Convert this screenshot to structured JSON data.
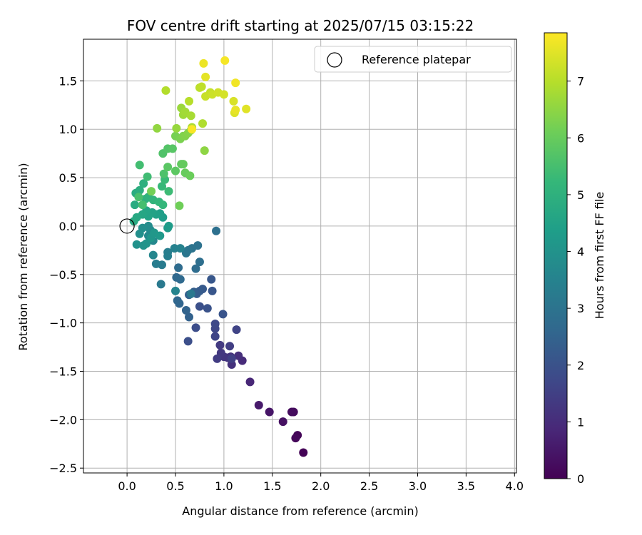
{
  "chart_data": {
    "type": "scatter",
    "title": "FOV centre drift starting at 2025/07/15 03:15:22",
    "xlabel": "Angular distance from reference (arcmin)",
    "ylabel": "Rotation from reference (arcmin)",
    "xlim": [
      -0.45,
      4.02
    ],
    "ylim": [
      -2.55,
      1.93
    ],
    "xticks": [
      0.0,
      0.5,
      1.0,
      1.5,
      2.0,
      2.5,
      3.0,
      3.5,
      4.0
    ],
    "xtick_labels": [
      "0.0",
      "0.5",
      "1.0",
      "1.5",
      "2.0",
      "2.5",
      "3.0",
      "3.5",
      "4.0"
    ],
    "yticks": [
      1.5,
      1.0,
      0.5,
      0.0,
      -0.5,
      -1.0,
      -1.5,
      -2.0,
      -2.5
    ],
    "ytick_labels": [
      "1.5",
      "1.0",
      "0.5",
      "0.0",
      "−0.5",
      "−1.0",
      "−1.5",
      "−2.0",
      "−2.5"
    ],
    "grid": true,
    "legend": {
      "position": "top-right",
      "entries": [
        "Reference platepar"
      ]
    },
    "reference_point": {
      "x": 0.0,
      "y": 0.0,
      "label": "Reference platepar"
    },
    "colorbar": {
      "label": "Hours from first FF file",
      "min": 0,
      "max": 7.85,
      "ticks": [
        0,
        1,
        2,
        3,
        4,
        5,
        6,
        7
      ],
      "tick_labels": [
        "0",
        "1",
        "2",
        "3",
        "4",
        "5",
        "6",
        "7"
      ],
      "colormap": "viridis",
      "stops": [
        "#440154",
        "#482878",
        "#3e4989",
        "#31688e",
        "#26828e",
        "#1f9e89",
        "#35b779",
        "#6ece58",
        "#b5de2b",
        "#fde725"
      ]
    },
    "points": [
      {
        "x": 1.82,
        "y": -2.34,
        "h": 0.05
      },
      {
        "x": 1.76,
        "y": -2.16,
        "h": 0.1
      },
      {
        "x": 1.74,
        "y": -2.19,
        "h": 0.15
      },
      {
        "x": 1.72,
        "y": -1.92,
        "h": 0.2
      },
      {
        "x": 1.7,
        "y": -1.92,
        "h": 0.25
      },
      {
        "x": 1.61,
        "y": -2.02,
        "h": 0.35
      },
      {
        "x": 1.47,
        "y": -1.92,
        "h": 0.45
      },
      {
        "x": 1.36,
        "y": -1.85,
        "h": 0.55
      },
      {
        "x": 1.27,
        "y": -1.61,
        "h": 0.85
      },
      {
        "x": 1.19,
        "y": -1.39,
        "h": 0.95
      },
      {
        "x": 1.15,
        "y": -1.34,
        "h": 1.05
      },
      {
        "x": 1.08,
        "y": -1.43,
        "h": 1.1
      },
      {
        "x": 1.07,
        "y": -1.35,
        "h": 1.15
      },
      {
        "x": 1.04,
        "y": -1.36,
        "h": 1.2
      },
      {
        "x": 1.0,
        "y": -1.35,
        "h": 1.25
      },
      {
        "x": 0.97,
        "y": -1.31,
        "h": 1.3
      },
      {
        "x": 0.96,
        "y": -1.23,
        "h": 1.35
      },
      {
        "x": 0.93,
        "y": -1.37,
        "h": 1.4
      },
      {
        "x": 1.06,
        "y": -1.24,
        "h": 1.45
      },
      {
        "x": 1.08,
        "y": -1.37,
        "h": 1.5
      },
      {
        "x": 1.13,
        "y": -1.07,
        "h": 1.6
      },
      {
        "x": 0.91,
        "y": -1.14,
        "h": 1.65
      },
      {
        "x": 0.91,
        "y": -1.06,
        "h": 1.7
      },
      {
        "x": 0.91,
        "y": -1.01,
        "h": 1.75
      },
      {
        "x": 0.71,
        "y": -1.05,
        "h": 1.85
      },
      {
        "x": 0.63,
        "y": -1.19,
        "h": 1.9
      },
      {
        "x": 0.75,
        "y": -0.83,
        "h": 1.95
      },
      {
        "x": 0.83,
        "y": -0.85,
        "h": 2.0
      },
      {
        "x": 0.99,
        "y": -0.91,
        "h": 2.05
      },
      {
        "x": 0.88,
        "y": -0.67,
        "h": 2.1
      },
      {
        "x": 0.87,
        "y": -0.55,
        "h": 2.15
      },
      {
        "x": 0.78,
        "y": -0.65,
        "h": 2.2
      },
      {
        "x": 0.75,
        "y": -0.67,
        "h": 2.25
      },
      {
        "x": 0.72,
        "y": -0.7,
        "h": 2.3
      },
      {
        "x": 0.69,
        "y": -0.68,
        "h": 2.35
      },
      {
        "x": 0.64,
        "y": -0.71,
        "h": 2.4
      },
      {
        "x": 0.64,
        "y": -0.94,
        "h": 2.45
      },
      {
        "x": 0.61,
        "y": -0.87,
        "h": 2.5
      },
      {
        "x": 0.54,
        "y": -0.8,
        "h": 2.55
      },
      {
        "x": 0.52,
        "y": -0.77,
        "h": 2.6
      },
      {
        "x": 0.51,
        "y": -0.53,
        "h": 2.65
      },
      {
        "x": 0.55,
        "y": -0.55,
        "h": 2.7
      },
      {
        "x": 0.53,
        "y": -0.43,
        "h": 2.75
      },
      {
        "x": 0.71,
        "y": -0.44,
        "h": 2.8
      },
      {
        "x": 0.75,
        "y": -0.37,
        "h": 2.85
      },
      {
        "x": 0.92,
        "y": -0.05,
        "h": 2.9
      },
      {
        "x": 0.73,
        "y": -0.2,
        "h": 2.95
      },
      {
        "x": 0.67,
        "y": -0.23,
        "h": 3.0
      },
      {
        "x": 0.63,
        "y": -0.25,
        "h": 3.05
      },
      {
        "x": 0.61,
        "y": -0.28,
        "h": 3.1
      },
      {
        "x": 0.66,
        "y": -0.7,
        "h": 3.15
      },
      {
        "x": 0.35,
        "y": -0.6,
        "h": 3.2
      },
      {
        "x": 0.36,
        "y": -0.4,
        "h": 3.25
      },
      {
        "x": 0.3,
        "y": -0.39,
        "h": 3.3
      },
      {
        "x": 0.42,
        "y": -0.27,
        "h": 3.35
      },
      {
        "x": 0.42,
        "y": -0.31,
        "h": 3.4
      },
      {
        "x": 0.49,
        "y": -0.23,
        "h": 3.45
      },
      {
        "x": 0.55,
        "y": -0.23,
        "h": 3.5
      },
      {
        "x": 0.5,
        "y": -0.67,
        "h": 3.55
      },
      {
        "x": 0.27,
        "y": -0.3,
        "h": 3.6
      },
      {
        "x": 0.27,
        "y": -0.15,
        "h": 3.65
      },
      {
        "x": 0.22,
        "y": -0.1,
        "h": 3.7
      },
      {
        "x": 0.24,
        "y": -0.04,
        "h": 3.75
      },
      {
        "x": 0.22,
        "y": 0.0,
        "h": 3.8
      },
      {
        "x": 0.16,
        "y": -0.02,
        "h": 3.85
      },
      {
        "x": 0.13,
        "y": -0.08,
        "h": 3.9
      },
      {
        "x": 0.1,
        "y": -0.19,
        "h": 3.95
      },
      {
        "x": 0.17,
        "y": -0.2,
        "h": 4.0
      },
      {
        "x": 0.2,
        "y": -0.18,
        "h": 4.05
      },
      {
        "x": 0.25,
        "y": -0.12,
        "h": 4.1
      },
      {
        "x": 0.28,
        "y": -0.07,
        "h": 4.15
      },
      {
        "x": 0.34,
        "y": -0.1,
        "h": 4.2
      },
      {
        "x": 0.42,
        "y": -0.02,
        "h": 4.25
      },
      {
        "x": 0.43,
        "y": 0.0,
        "h": 4.3
      },
      {
        "x": 0.37,
        "y": 0.09,
        "h": 4.35
      },
      {
        "x": 0.34,
        "y": 0.13,
        "h": 4.4
      },
      {
        "x": 0.3,
        "y": 0.12,
        "h": 4.45
      },
      {
        "x": 0.26,
        "y": 0.14,
        "h": 4.5
      },
      {
        "x": 0.22,
        "y": 0.1,
        "h": 4.55
      },
      {
        "x": 0.2,
        "y": 0.16,
        "h": 4.6
      },
      {
        "x": 0.16,
        "y": 0.12,
        "h": 4.65
      },
      {
        "x": 0.1,
        "y": 0.09,
        "h": 4.7
      },
      {
        "x": 0.07,
        "y": 0.05,
        "h": 4.75
      },
      {
        "x": 0.08,
        "y": 0.22,
        "h": 4.8
      },
      {
        "x": 0.09,
        "y": 0.34,
        "h": 4.85
      },
      {
        "x": 0.13,
        "y": 0.37,
        "h": 4.9
      },
      {
        "x": 0.17,
        "y": 0.44,
        "h": 4.95
      },
      {
        "x": 0.19,
        "y": 0.28,
        "h": 5.0
      },
      {
        "x": 0.22,
        "y": 0.3,
        "h": 5.05
      },
      {
        "x": 0.27,
        "y": 0.27,
        "h": 5.1
      },
      {
        "x": 0.33,
        "y": 0.25,
        "h": 5.15
      },
      {
        "x": 0.37,
        "y": 0.22,
        "h": 5.2
      },
      {
        "x": 0.36,
        "y": 0.41,
        "h": 5.25
      },
      {
        "x": 0.39,
        "y": 0.48,
        "h": 5.3
      },
      {
        "x": 0.43,
        "y": 0.36,
        "h": 5.35
      },
      {
        "x": 0.21,
        "y": 0.51,
        "h": 5.4
      },
      {
        "x": 0.13,
        "y": 0.63,
        "h": 5.45
      },
      {
        "x": 0.16,
        "y": 0.22,
        "h": 5.5
      },
      {
        "x": 0.12,
        "y": 0.3,
        "h": 5.55
      },
      {
        "x": 0.38,
        "y": 0.54,
        "h": 5.6
      },
      {
        "x": 0.37,
        "y": 0.75,
        "h": 5.65
      },
      {
        "x": 0.42,
        "y": 0.8,
        "h": 5.7
      },
      {
        "x": 0.47,
        "y": 0.8,
        "h": 5.75
      },
      {
        "x": 0.42,
        "y": 0.61,
        "h": 5.8
      },
      {
        "x": 0.5,
        "y": 0.57,
        "h": 5.85
      },
      {
        "x": 0.56,
        "y": 0.64,
        "h": 5.9
      },
      {
        "x": 0.58,
        "y": 0.64,
        "h": 5.95
      },
      {
        "x": 0.6,
        "y": 0.55,
        "h": 6.0
      },
      {
        "x": 0.65,
        "y": 0.52,
        "h": 6.05
      },
      {
        "x": 0.54,
        "y": 0.21,
        "h": 6.1
      },
      {
        "x": 0.25,
        "y": 0.36,
        "h": 6.15
      },
      {
        "x": 0.5,
        "y": 0.93,
        "h": 6.2
      },
      {
        "x": 0.55,
        "y": 0.9,
        "h": 6.25
      },
      {
        "x": 0.58,
        "y": 0.93,
        "h": 6.3
      },
      {
        "x": 0.6,
        "y": 0.93,
        "h": 6.35
      },
      {
        "x": 0.63,
        "y": 0.96,
        "h": 6.4
      },
      {
        "x": 0.66,
        "y": 0.99,
        "h": 6.45
      },
      {
        "x": 0.8,
        "y": 0.78,
        "h": 6.5
      },
      {
        "x": 0.31,
        "y": 1.01,
        "h": 6.55
      },
      {
        "x": 0.51,
        "y": 1.01,
        "h": 6.6
      },
      {
        "x": 0.56,
        "y": 1.22,
        "h": 6.65
      },
      {
        "x": 0.58,
        "y": 1.15,
        "h": 6.7
      },
      {
        "x": 0.6,
        "y": 1.18,
        "h": 6.75
      },
      {
        "x": 0.66,
        "y": 1.14,
        "h": 6.8
      },
      {
        "x": 0.67,
        "y": 1.02,
        "h": 6.85
      },
      {
        "x": 0.78,
        "y": 1.06,
        "h": 6.9
      },
      {
        "x": 0.4,
        "y": 1.4,
        "h": 6.95
      },
      {
        "x": 0.64,
        "y": 1.29,
        "h": 7.0
      },
      {
        "x": 0.75,
        "y": 1.43,
        "h": 7.05
      },
      {
        "x": 0.77,
        "y": 1.44,
        "h": 7.1
      },
      {
        "x": 0.86,
        "y": 1.38,
        "h": 7.15
      },
      {
        "x": 0.81,
        "y": 1.34,
        "h": 7.2
      },
      {
        "x": 0.88,
        "y": 1.36,
        "h": 7.25
      },
      {
        "x": 0.94,
        "y": 1.38,
        "h": 7.3
      },
      {
        "x": 1.0,
        "y": 1.36,
        "h": 7.35
      },
      {
        "x": 1.1,
        "y": 1.29,
        "h": 7.4
      },
      {
        "x": 1.11,
        "y": 1.17,
        "h": 7.45
      },
      {
        "x": 1.23,
        "y": 1.21,
        "h": 7.5
      },
      {
        "x": 0.81,
        "y": 1.54,
        "h": 7.55
      },
      {
        "x": 1.12,
        "y": 1.2,
        "h": 7.6
      },
      {
        "x": 0.79,
        "y": 1.68,
        "h": 7.65
      },
      {
        "x": 1.12,
        "y": 1.48,
        "h": 7.7
      },
      {
        "x": 1.01,
        "y": 1.71,
        "h": 7.75
      },
      {
        "x": 0.67,
        "y": 1.0,
        "h": 7.8
      }
    ]
  }
}
